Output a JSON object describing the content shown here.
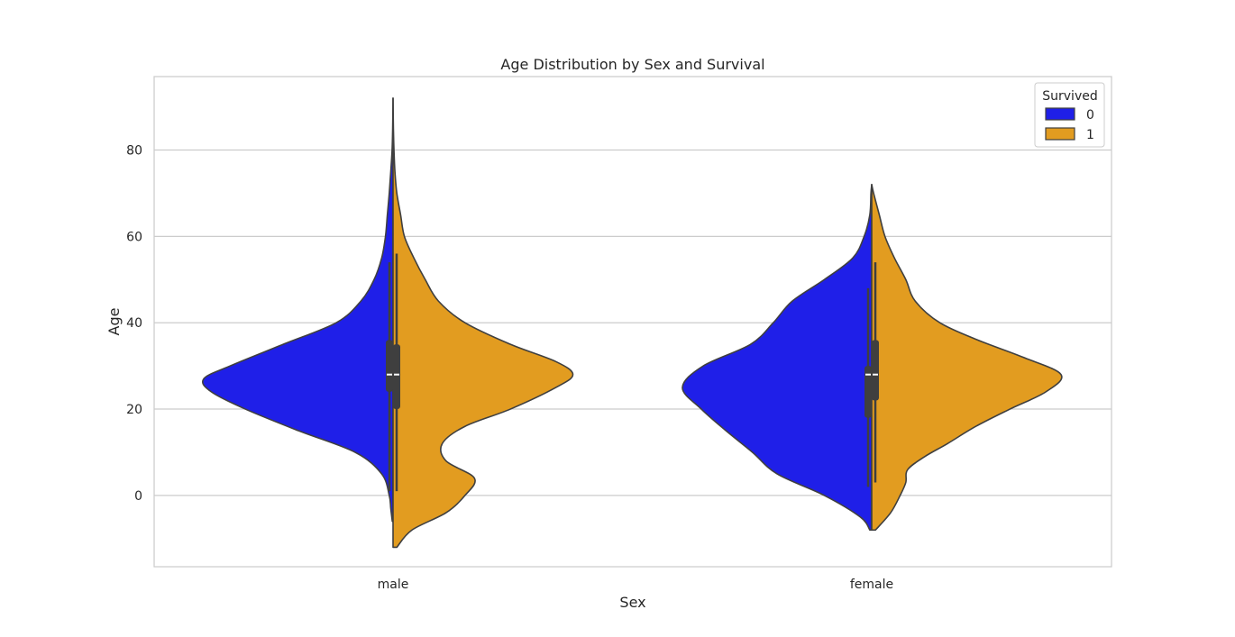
{
  "chart_data": {
    "type": "violin",
    "title": "Age Distribution by Sex and Survival",
    "xlabel": "Sex",
    "ylabel": "Age",
    "categories": [
      "male",
      "female"
    ],
    "ylim": [
      -16.5,
      97
    ],
    "yticks": [
      0,
      20,
      40,
      60,
      80
    ],
    "grid": "horizontal",
    "legend": {
      "title": "Survived",
      "placement": "top-right",
      "entries": [
        {
          "label": "0",
          "color": "#1f1fe8"
        },
        {
          "label": "1",
          "color": "#e29c20"
        }
      ]
    },
    "split": true,
    "series": [
      {
        "name": "0",
        "color": "#1f1fe8",
        "violins": [
          {
            "category": "male",
            "min": -6,
            "max": 92,
            "q1": 24,
            "median": 28,
            "q3": 36,
            "whisker_low": 1,
            "whisker_high": 54,
            "density": [
              [
                -6,
                0.004
              ],
              [
                -3,
                0.012
              ],
              [
                0,
                0.02
              ],
              [
                5,
                0.06
              ],
              [
                10,
                0.2
              ],
              [
                15,
                0.5
              ],
              [
                20,
                0.78
              ],
              [
                24,
                0.96
              ],
              [
                27,
                1.0
              ],
              [
                30,
                0.86
              ],
              [
                35,
                0.58
              ],
              [
                40,
                0.3
              ],
              [
                45,
                0.17
              ],
              [
                50,
                0.1
              ],
              [
                55,
                0.06
              ],
              [
                60,
                0.04
              ],
              [
                65,
                0.03
              ],
              [
                70,
                0.02
              ],
              [
                75,
                0.012
              ],
              [
                80,
                0.005
              ],
              [
                85,
                0.002
              ],
              [
                92,
                0.0
              ]
            ]
          },
          {
            "category": "female",
            "min": -8,
            "max": 72,
            "q1": 18,
            "median": 28,
            "q3": 30,
            "whisker_low": 2,
            "whisker_high": 48,
            "density": [
              [
                -8,
                0.01
              ],
              [
                -5,
                0.06
              ],
              [
                0,
                0.25
              ],
              [
                5,
                0.5
              ],
              [
                10,
                0.63
              ],
              [
                15,
                0.77
              ],
              [
                20,
                0.9
              ],
              [
                25,
                1.0
              ],
              [
                30,
                0.89
              ],
              [
                35,
                0.64
              ],
              [
                40,
                0.52
              ],
              [
                45,
                0.42
              ],
              [
                50,
                0.25
              ],
              [
                55,
                0.1
              ],
              [
                60,
                0.04
              ],
              [
                65,
                0.01
              ],
              [
                70,
                0.004
              ],
              [
                72,
                0.0
              ]
            ]
          }
        ]
      },
      {
        "name": "1",
        "color": "#e29c20",
        "violins": [
          {
            "category": "male",
            "min": -12,
            "max": 92,
            "q1": 20,
            "median": 28,
            "q3": 35,
            "whisker_low": 1,
            "whisker_high": 56,
            "density": [
              [
                -12,
                0.02
              ],
              [
                -8,
                0.1
              ],
              [
                -4,
                0.28
              ],
              [
                0,
                0.38
              ],
              [
                4,
                0.43
              ],
              [
                8,
                0.28
              ],
              [
                12,
                0.26
              ],
              [
                16,
                0.38
              ],
              [
                20,
                0.62
              ],
              [
                25,
                0.86
              ],
              [
                28,
                0.95
              ],
              [
                31,
                0.86
              ],
              [
                35,
                0.62
              ],
              [
                40,
                0.38
              ],
              [
                45,
                0.24
              ],
              [
                50,
                0.17
              ],
              [
                55,
                0.11
              ],
              [
                60,
                0.06
              ],
              [
                65,
                0.04
              ],
              [
                70,
                0.02
              ],
              [
                75,
                0.01
              ],
              [
                80,
                0.005
              ],
              [
                85,
                0.002
              ],
              [
                92,
                0.0
              ]
            ]
          },
          {
            "category": "female",
            "min": -8,
            "max": 72,
            "q1": 22,
            "median": 28,
            "q3": 36,
            "whisker_low": 3,
            "whisker_high": 54,
            "density": [
              [
                -8,
                0.02
              ],
              [
                -4,
                0.1
              ],
              [
                0,
                0.15
              ],
              [
                3,
                0.18
              ],
              [
                6,
                0.19
              ],
              [
                9,
                0.28
              ],
              [
                12,
                0.4
              ],
              [
                16,
                0.55
              ],
              [
                20,
                0.73
              ],
              [
                24,
                0.92
              ],
              [
                28,
                1.0
              ],
              [
                32,
                0.8
              ],
              [
                36,
                0.56
              ],
              [
                40,
                0.36
              ],
              [
                45,
                0.23
              ],
              [
                50,
                0.18
              ],
              [
                55,
                0.12
              ],
              [
                60,
                0.07
              ],
              [
                65,
                0.04
              ],
              [
                70,
                0.01
              ],
              [
                72,
                0.0
              ]
            ]
          }
        ]
      }
    ]
  }
}
